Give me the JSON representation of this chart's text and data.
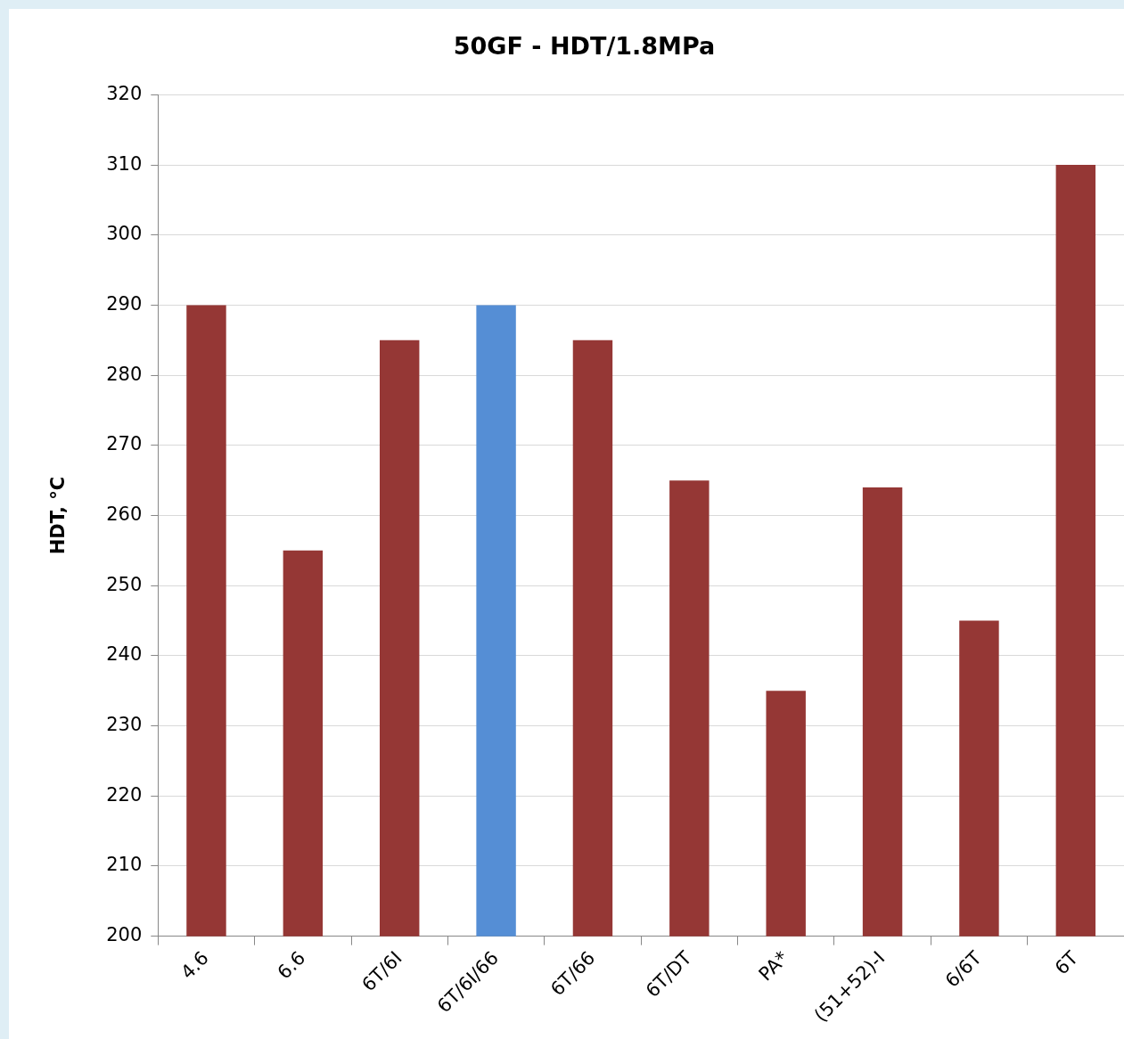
{
  "chart_data": {
    "type": "bar",
    "title": "50GF - HDT/1.8MPa",
    "ylabel": "HDT, °C",
    "categories": [
      "4.6",
      "6.6",
      "6T/6I",
      "6T/6I/66",
      "6T/66",
      "6T/DT",
      "PA*",
      "(51+52)-I",
      "6/6T",
      "6T"
    ],
    "values": [
      290,
      255,
      285,
      290,
      285,
      265,
      235,
      264,
      245,
      310
    ],
    "colors": [
      "#953735",
      "#953735",
      "#953735",
      "#558ed5",
      "#953735",
      "#953735",
      "#953735",
      "#953735",
      "#953735",
      "#953735"
    ],
    "ylim": [
      200,
      320
    ],
    "yticks": [
      200,
      210,
      220,
      230,
      240,
      250,
      260,
      270,
      280,
      290,
      300,
      310,
      320
    ],
    "grid": "y",
    "legend": false
  }
}
